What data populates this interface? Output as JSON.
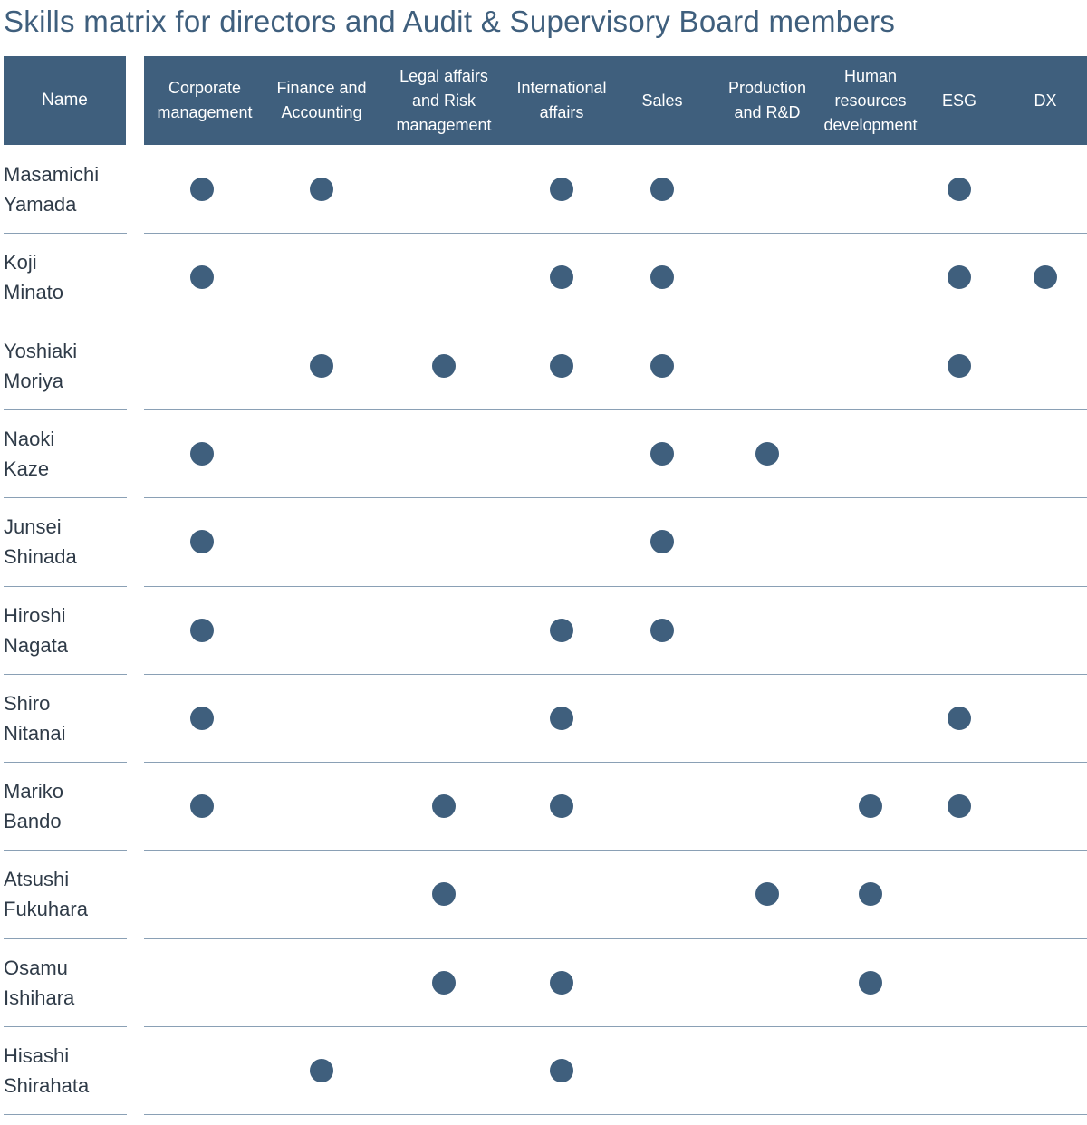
{
  "title": "Skills matrix for directors and Audit & Supervisory Board members",
  "header": {
    "name_label": "Name",
    "skills": [
      {
        "key": "corporate",
        "lines": [
          "Corporate",
          "management"
        ]
      },
      {
        "key": "finance",
        "lines": [
          "Finance and",
          "Accounting"
        ]
      },
      {
        "key": "legal",
        "lines": [
          "Legal affairs",
          "and Risk",
          "management"
        ]
      },
      {
        "key": "international",
        "lines": [
          "International",
          "affairs"
        ]
      },
      {
        "key": "sales",
        "lines": [
          "Sales"
        ]
      },
      {
        "key": "production",
        "lines": [
          "Production",
          "and R&D"
        ]
      },
      {
        "key": "hr",
        "lines": [
          "Human",
          "resources",
          "development"
        ]
      },
      {
        "key": "esg",
        "lines": [
          "ESG"
        ]
      },
      {
        "key": "dx",
        "lines": [
          "DX"
        ]
      }
    ]
  },
  "members": [
    {
      "first": "Masamichi",
      "last": "Yamada",
      "skills": [
        1,
        1,
        0,
        1,
        1,
        0,
        0,
        1,
        0
      ]
    },
    {
      "first": "Koji",
      "last": "Minato",
      "skills": [
        1,
        0,
        0,
        1,
        1,
        0,
        0,
        1,
        1
      ]
    },
    {
      "first": "Yoshiaki",
      "last": "Moriya",
      "skills": [
        0,
        1,
        1,
        1,
        1,
        0,
        0,
        1,
        0
      ]
    },
    {
      "first": "Naoki",
      "last": "Kaze",
      "skills": [
        1,
        0,
        0,
        0,
        1,
        1,
        0,
        0,
        0
      ]
    },
    {
      "first": "Junsei",
      "last": "Shinada",
      "skills": [
        1,
        0,
        0,
        0,
        1,
        0,
        0,
        0,
        0
      ]
    },
    {
      "first": "Hiroshi",
      "last": "Nagata",
      "skills": [
        1,
        0,
        0,
        1,
        1,
        0,
        0,
        0,
        0
      ]
    },
    {
      "first": "Shiro",
      "last": "Nitanai",
      "skills": [
        1,
        0,
        0,
        1,
        0,
        0,
        0,
        1,
        0
      ]
    },
    {
      "first": "Mariko",
      "last": "Bando",
      "skills": [
        1,
        0,
        1,
        1,
        0,
        0,
        1,
        1,
        0
      ]
    },
    {
      "first": "Atsushi",
      "last": "Fukuhara",
      "skills": [
        0,
        0,
        1,
        0,
        0,
        1,
        1,
        0,
        0
      ]
    },
    {
      "first": "Osamu",
      "last": "Ishihara",
      "skills": [
        0,
        0,
        1,
        1,
        0,
        0,
        1,
        0,
        0
      ]
    },
    {
      "first": "Hisashi",
      "last": "Shirahata",
      "skills": [
        0,
        1,
        0,
        1,
        0,
        0,
        0,
        0,
        0
      ]
    }
  ],
  "colors": {
    "accent": "#3f5f7d",
    "divider": "#8aa0b5",
    "text": "#2f3b48"
  }
}
